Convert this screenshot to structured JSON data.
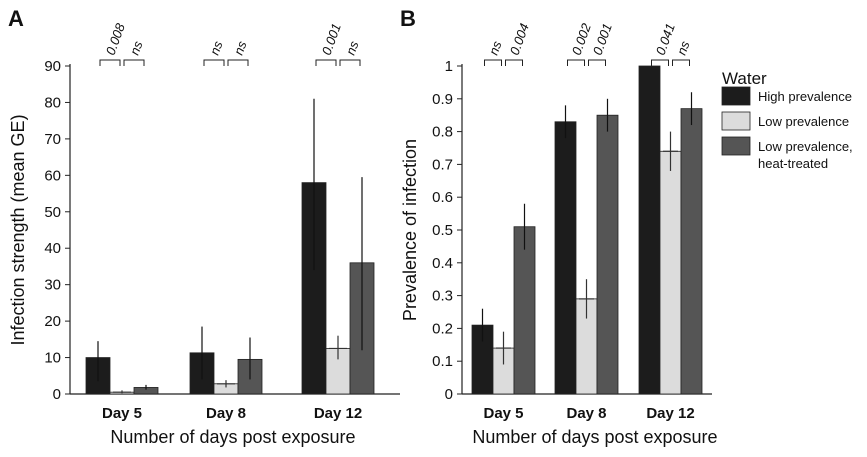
{
  "panels": {
    "a_label": "A",
    "b_label": "B"
  },
  "legend": {
    "title": "Water",
    "items": [
      {
        "label_lines": [
          "High prevalence"
        ],
        "color": "#1c1c1c"
      },
      {
        "label_lines": [
          "Low prevalence"
        ],
        "color": "#dcdcdc"
      },
      {
        "label_lines": [
          "Low prevalence,",
          "heat-treated"
        ],
        "color": "#555555"
      }
    ]
  },
  "chart_data": [
    {
      "panel": "A",
      "type": "bar",
      "categories": [
        "Day 5",
        "Day 8",
        "Day 12"
      ],
      "xlabel": "Number of days post exposure",
      "ylabel": "Infection strength (mean GE)",
      "ylim": [
        0,
        90
      ],
      "yticks": [
        "0",
        "10",
        "20",
        "30",
        "40",
        "50",
        "60",
        "70",
        "80",
        "90"
      ],
      "grid": false,
      "series": [
        {
          "name": "High prevalence",
          "color": "#1c1c1c",
          "values": [
            10,
            11.3,
            58
          ],
          "error_low": [
            3.5,
            4,
            34
          ],
          "error_high": [
            14.5,
            18.5,
            81
          ]
        },
        {
          "name": "Low prevalence",
          "color": "#dcdcdc",
          "values": [
            0.5,
            2.8,
            12.5
          ],
          "error_low": [
            0.2,
            1.8,
            9.5
          ],
          "error_high": [
            1,
            3.8,
            16
          ]
        },
        {
          "name": "Low prevalence, heat-treated",
          "color": "#555555",
          "values": [
            1.8,
            9.5,
            36
          ],
          "error_low": [
            1.2,
            4,
            12
          ],
          "error_high": [
            2.5,
            15.5,
            59.5
          ]
        }
      ],
      "annotations": [
        {
          "text": "0.008",
          "category_index": 0,
          "pair": "high-low"
        },
        {
          "text": "ns",
          "category_index": 0,
          "pair": "low-heat"
        },
        {
          "text": "ns",
          "category_index": 1,
          "pair": "high-low"
        },
        {
          "text": "ns",
          "category_index": 1,
          "pair": "low-heat"
        },
        {
          "text": "0.001",
          "category_index": 2,
          "pair": "high-low"
        },
        {
          "text": "ns",
          "category_index": 2,
          "pair": "low-heat"
        }
      ]
    },
    {
      "panel": "B",
      "type": "bar",
      "categories": [
        "Day 5",
        "Day 8",
        "Day 12"
      ],
      "xlabel": "Number of days post exposure",
      "ylabel": "Prevalence of infection",
      "ylim": [
        0,
        1
      ],
      "yticks": [
        "0",
        "0.1",
        "0.2",
        "0.3",
        "0.4",
        "0.5",
        "0.6",
        "0.7",
        "0.8",
        "0.9",
        "1"
      ],
      "grid": false,
      "legend_position": "right",
      "series": [
        {
          "name": "High prevalence",
          "color": "#1c1c1c",
          "values": [
            0.21,
            0.83,
            1.0
          ],
          "error_low": [
            0.16,
            0.78,
            1.0
          ],
          "error_high": [
            0.26,
            0.88,
            1.0
          ]
        },
        {
          "name": "Low prevalence",
          "color": "#dcdcdc",
          "values": [
            0.14,
            0.29,
            0.74
          ],
          "error_low": [
            0.09,
            0.23,
            0.68
          ],
          "error_high": [
            0.19,
            0.35,
            0.8
          ]
        },
        {
          "name": "Low prevalence, heat-treated",
          "color": "#555555",
          "values": [
            0.51,
            0.85,
            0.87
          ],
          "error_low": [
            0.44,
            0.8,
            0.82
          ],
          "error_high": [
            0.58,
            0.9,
            0.92
          ]
        }
      ],
      "annotations": [
        {
          "text": "ns",
          "category_index": 0,
          "pair": "high-low"
        },
        {
          "text": "0.004",
          "category_index": 0,
          "pair": "low-heat"
        },
        {
          "text": "0.002",
          "category_index": 1,
          "pair": "high-low"
        },
        {
          "text": "0.001",
          "category_index": 1,
          "pair": "low-heat"
        },
        {
          "text": "0.041",
          "category_index": 2,
          "pair": "high-low"
        },
        {
          "text": "ns",
          "category_index": 2,
          "pair": "low-heat"
        }
      ]
    }
  ]
}
